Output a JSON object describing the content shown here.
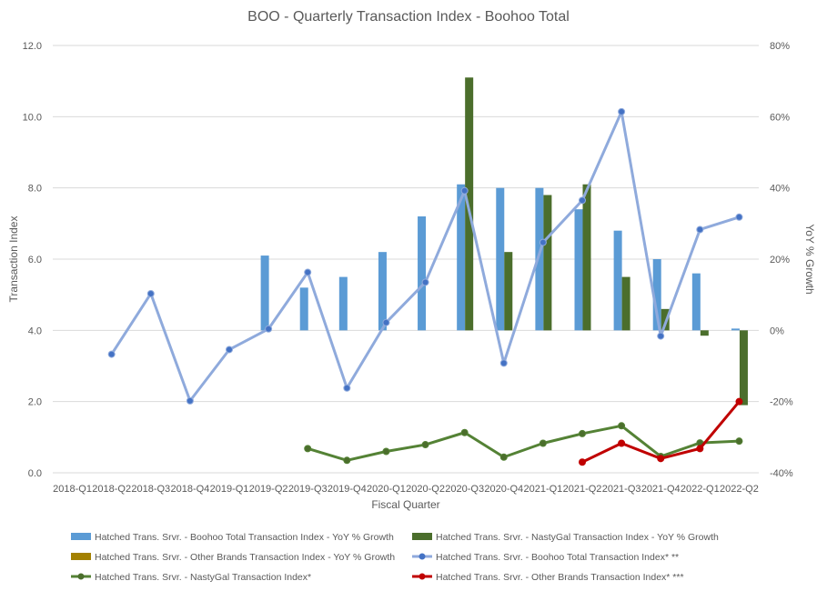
{
  "chart_data": {
    "type": "bar",
    "title": "BOO - Quarterly Transaction Index - Boohoo Total",
    "xlabel": "Fiscal Quarter",
    "ylabel": "Transaction Index",
    "y2label": "YoY % Growth",
    "ylim": [
      0,
      12
    ],
    "y2lim": [
      -40,
      80
    ],
    "yticks": [
      "0.0",
      "2.0",
      "4.0",
      "6.0",
      "8.0",
      "10.0",
      "12.0"
    ],
    "y2ticks": [
      "-40%",
      "-20%",
      "0%",
      "20%",
      "40%",
      "60%",
      "80%"
    ],
    "grid": true,
    "legend_position": "bottom",
    "categories": [
      "2018-Q1",
      "2018-Q2",
      "2018-Q3",
      "2018-Q4",
      "2019-Q1",
      "2019-Q2",
      "2019-Q3",
      "2019-Q4",
      "2020-Q1",
      "2020-Q2",
      "2020-Q3",
      "2020-Q4",
      "2021-Q1",
      "2021-Q2",
      "2021-Q3",
      "2021-Q4",
      "2022-Q1",
      "2022-Q2"
    ],
    "bar_series": [
      {
        "name": "Hatched Trans. Srvr. - Boohoo Total Transaction Index - YoY % Growth",
        "color": "#5b9bd5",
        "axis": "secondary",
        "values": [
          null,
          null,
          null,
          null,
          null,
          21,
          12,
          15,
          22,
          32,
          41,
          40,
          40,
          34,
          28,
          20,
          16,
          0.5
        ]
      },
      {
        "name": "Hatched Trans. Srvr. - NastyGal  Transaction Index - YoY % Growth",
        "color": "#4b6e2c",
        "axis": "secondary",
        "values": [
          null,
          null,
          null,
          null,
          null,
          null,
          null,
          null,
          null,
          null,
          71,
          22,
          38,
          41,
          15,
          6,
          -1.5,
          -21
        ]
      },
      {
        "name": "Hatched Trans. Srvr. - Other Brands Transaction Index  - YoY % Growth",
        "color": "#a38000",
        "axis": "secondary",
        "values": [
          null,
          null,
          null,
          null,
          null,
          null,
          null,
          null,
          null,
          null,
          null,
          null,
          null,
          null,
          null,
          null,
          null,
          null
        ]
      }
    ],
    "line_series": [
      {
        "name": "Hatched Trans. Srvr. - Boohoo Total Transaction Index* **",
        "color": "#8faadc",
        "marker": "#4472c4",
        "axis": "primary",
        "values": [
          null,
          3.33,
          5.03,
          2.02,
          3.46,
          4.04,
          5.63,
          2.38,
          4.22,
          5.35,
          7.92,
          3.08,
          6.47,
          7.65,
          10.14,
          3.84,
          6.83,
          7.18
        ]
      },
      {
        "name": "Hatched Trans. Srvr. - NastyGal  Transaction Index*",
        "color": "#548235",
        "marker": "#4b6e2c",
        "axis": "primary",
        "values": [
          null,
          null,
          null,
          null,
          null,
          null,
          0.68,
          0.35,
          0.6,
          0.79,
          1.13,
          0.44,
          0.83,
          1.1,
          1.32,
          0.46,
          0.84,
          0.89
        ]
      },
      {
        "name": "Hatched Trans. Srvr. - Other Brands Transaction Index* ***",
        "color": "#c00000",
        "marker": "#c00000",
        "axis": "primary",
        "values": [
          null,
          null,
          null,
          null,
          null,
          null,
          null,
          null,
          null,
          null,
          null,
          null,
          null,
          0.3,
          0.83,
          0.4,
          0.68,
          2.0
        ]
      }
    ]
  }
}
